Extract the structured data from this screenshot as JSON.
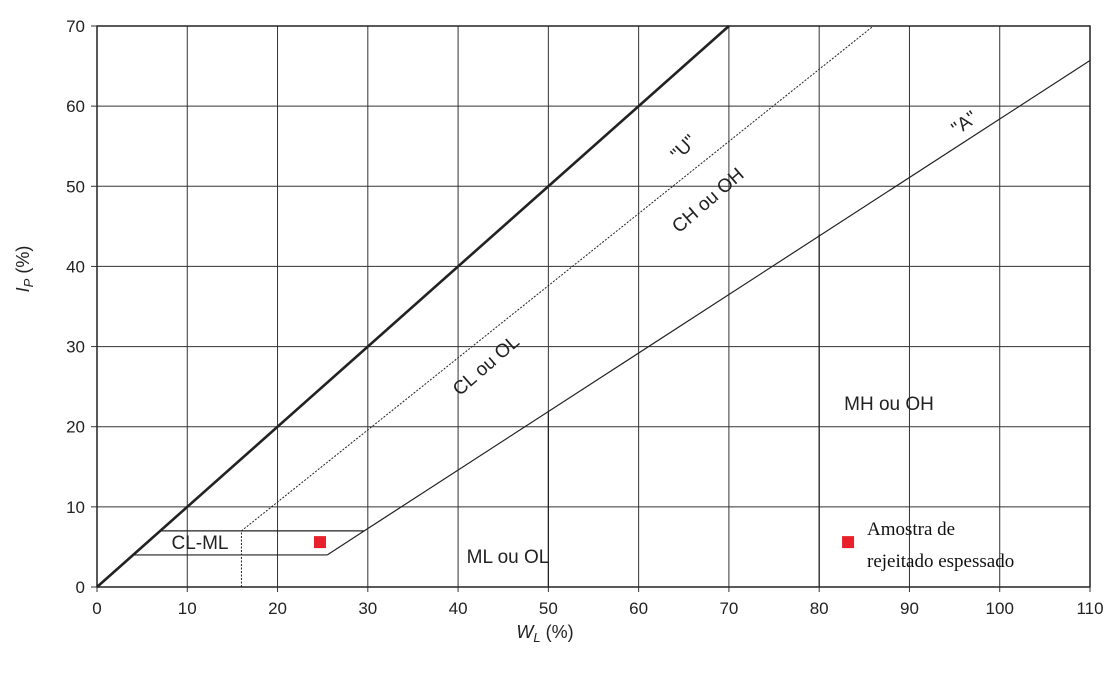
{
  "chart_data": {
    "type": "line",
    "title": "",
    "xlabel": "W",
    "xlabel_sub": "L",
    "xlabel_unit": " (%)",
    "ylabel": "I",
    "ylabel_sub": "P",
    "ylabel_unit": " (%)",
    "xlim": [
      0,
      110
    ],
    "ylim": [
      0,
      70
    ],
    "xticks": [
      0,
      10,
      20,
      30,
      40,
      50,
      60,
      70,
      80,
      90,
      100,
      110
    ],
    "yticks": [
      0,
      10,
      20,
      30,
      40,
      50,
      60,
      70
    ],
    "grid": true,
    "series": [
      {
        "name": "\"U\"",
        "style": "bold",
        "x": [
          0,
          70
        ],
        "y": [
          0,
          70
        ]
      },
      {
        "name": "",
        "style": "dotted",
        "x": [
          16,
          16,
          86
        ],
        "y": [
          0,
          7,
          70
        ]
      },
      {
        "name": "\"A\"",
        "style": "thin",
        "x": [
          25.5,
          29.6,
          110
        ],
        "y": [
          4,
          7,
          65.7
        ]
      }
    ],
    "boundaries": [
      {
        "x": [
          4,
          25.5
        ],
        "y": [
          4,
          4
        ]
      },
      {
        "x": [
          7,
          29.6
        ],
        "y": [
          7,
          7
        ]
      },
      {
        "x": [
          50,
          50
        ],
        "y": [
          0,
          22
        ]
      },
      {
        "x": [
          80,
          80
        ],
        "y": [
          0,
          44
        ]
      }
    ],
    "points": [
      {
        "x": 24.7,
        "y": 5.6,
        "color": "#e8202a"
      },
      {
        "x": 83.2,
        "y": 5.6,
        "color": "#e8202a"
      }
    ],
    "line_labels": [
      "\"U\"",
      "\"A\""
    ],
    "region_labels": [
      "CL ou OL",
      "CH ou OH",
      "CL-ML",
      "ML ou OL",
      "MH ou OH"
    ],
    "legend_lines": [
      "Amostra de",
      "rejeitado espessado"
    ]
  }
}
